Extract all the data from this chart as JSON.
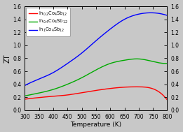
{
  "title": "",
  "xlabel": "Temperature (K)",
  "ylabel_left": "ZT",
  "ylabel_right": "",
  "xlim": [
    300,
    800
  ],
  "ylim": [
    0.0,
    1.6
  ],
  "x_ticks": [
    300,
    350,
    400,
    450,
    500,
    550,
    600,
    650,
    700,
    750,
    800
  ],
  "y_ticks": [
    0.0,
    0.2,
    0.4,
    0.6,
    0.8,
    1.0,
    1.2,
    1.4,
    1.6
  ],
  "legend_labels": [
    "In$_{0.2}$Co$_4$Sb$_{12}$",
    "In$_{0.4}$Co$_4$Sb$_{12}$",
    "In$_{1}$Co$_4$Sb$_{12}$"
  ],
  "legend_colors": [
    "#ff0000",
    "#00aa00",
    "#0000ff"
  ],
  "background_color": "#c8c8c8",
  "plot_bg_color": "#c8c8c8",
  "series": {
    "red": {
      "x": [
        300,
        350,
        400,
        450,
        500,
        550,
        600,
        650,
        700,
        750,
        800
      ],
      "y": [
        0.17,
        0.195,
        0.215,
        0.235,
        0.27,
        0.305,
        0.335,
        0.355,
        0.36,
        0.33,
        0.16
      ]
    },
    "green": {
      "x": [
        300,
        350,
        400,
        450,
        500,
        550,
        600,
        650,
        700,
        750,
        800
      ],
      "y": [
        0.22,
        0.265,
        0.32,
        0.4,
        0.5,
        0.62,
        0.72,
        0.77,
        0.79,
        0.75,
        0.72
      ]
    },
    "blue": {
      "x": [
        300,
        350,
        400,
        450,
        500,
        550,
        600,
        650,
        700,
        750,
        800
      ],
      "y": [
        0.38,
        0.48,
        0.58,
        0.72,
        0.88,
        1.07,
        1.25,
        1.4,
        1.48,
        1.5,
        1.46
      ]
    }
  }
}
